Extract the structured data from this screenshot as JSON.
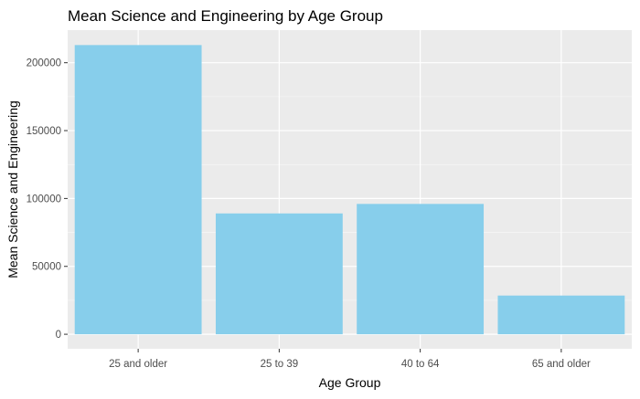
{
  "chart_data": {
    "type": "bar",
    "title": "Mean Science and Engineering by Age Group",
    "xlabel": "Age Group",
    "ylabel": "Mean Science and Engineering",
    "categories": [
      "25 and older",
      "25 to 39",
      "40 to 64",
      "65 and older"
    ],
    "values": [
      213000,
      89000,
      96000,
      28500
    ],
    "ylim": [
      -10700,
      224000
    ],
    "y_ticks": [
      0,
      50000,
      100000,
      150000,
      200000
    ],
    "y_tick_labels": [
      "0",
      "50000",
      "100000",
      "150000",
      "200000"
    ],
    "grid": true,
    "legend": "none",
    "colors": {
      "bar": "#87CEEB",
      "panel": "#EBEBEB",
      "grid_major": "#FFFFFF",
      "text": "#000000",
      "tick_text": "#4D4D4D",
      "tick_mark": "#333333"
    }
  }
}
